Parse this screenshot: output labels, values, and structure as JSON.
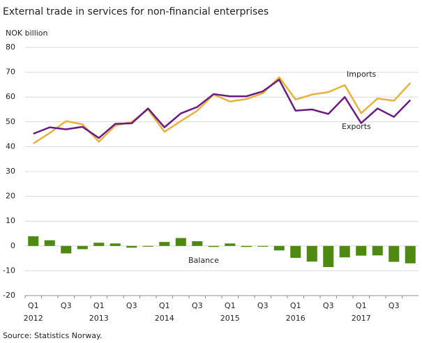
{
  "chart_data": {
    "type": "line",
    "title": "External trade in services for non-financial enterprises",
    "y_label": "NOK billion",
    "source": "Source: Statistics Norway.",
    "categories": [
      "Q1",
      null,
      "Q3",
      null,
      "Q1",
      null,
      "Q3",
      null,
      "Q1",
      null,
      "Q3",
      null,
      "Q1",
      null,
      "Q3",
      null,
      "Q1",
      null,
      "Q3",
      null,
      "Q1",
      null,
      "Q3",
      null
    ],
    "years": [
      "2012",
      "2013",
      "2014",
      "2015",
      "2016",
      "2017"
    ],
    "ylim": [
      -20,
      80
    ],
    "yticks": [
      -20,
      -10,
      0,
      10,
      20,
      30,
      40,
      50,
      60,
      70,
      80
    ],
    "grid": true,
    "series": [
      {
        "name": "Imports",
        "type": "line",
        "color": "#e8b23a",
        "values": [
          41.3,
          45.5,
          50.3,
          49,
          42,
          48.5,
          50,
          55,
          46,
          50.3,
          54.5,
          61,
          58.2,
          59.2,
          61.5,
          68,
          59,
          61,
          62,
          64.8,
          53.5,
          59.4,
          58.5,
          65.7
        ]
      },
      {
        "name": "Exports",
        "type": "line",
        "color": "#6a1a87",
        "values": [
          45.2,
          47.8,
          47,
          48,
          43.5,
          49.2,
          49.4,
          55.4,
          47.8,
          53.4,
          56,
          61.2,
          60.3,
          60.3,
          62.3,
          67,
          54.5,
          55,
          53.2,
          60,
          49.5,
          55.4,
          52,
          58.8
        ]
      },
      {
        "name": "Balance",
        "type": "bar",
        "color": "#4e8a12",
        "values": [
          3.9,
          2.3,
          -3,
          -1.3,
          1.3,
          1,
          -0.7,
          -0.3,
          1.6,
          3.2,
          1.9,
          -0.4,
          1,
          -0.4,
          -0.3,
          -1.8,
          -4.8,
          -6.3,
          -8.5,
          -4.6,
          -3.9,
          -3.8,
          -6.4,
          -7
        ]
      }
    ]
  }
}
